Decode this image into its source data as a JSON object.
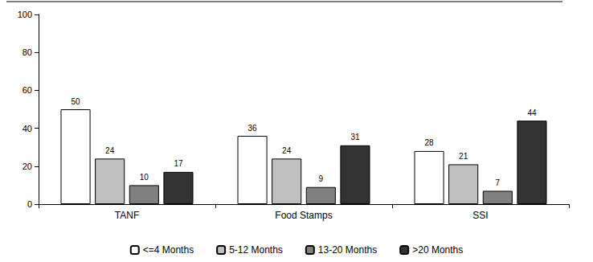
{
  "chart_data": {
    "type": "bar",
    "categories": [
      "TANF",
      "Food Stamps",
      "SSI"
    ],
    "series": [
      {
        "name": "<=4 Months",
        "color": "#ffffff",
        "values": [
          50,
          36,
          28
        ]
      },
      {
        "name": "5-12 Months",
        "color": "#c0c0c0",
        "values": [
          24,
          24,
          21
        ]
      },
      {
        "name": "13-20 Months",
        "color": "#808080",
        "values": [
          10,
          9,
          7
        ]
      },
      {
        "name": ">20 Months",
        "color": "#333333",
        "values": [
          17,
          31,
          44
        ]
      }
    ],
    "ylim": [
      0,
      100
    ],
    "yticks": [
      0,
      20,
      40,
      60,
      80,
      100
    ],
    "grid": false,
    "legend": "bottom",
    "data_labels": true
  }
}
